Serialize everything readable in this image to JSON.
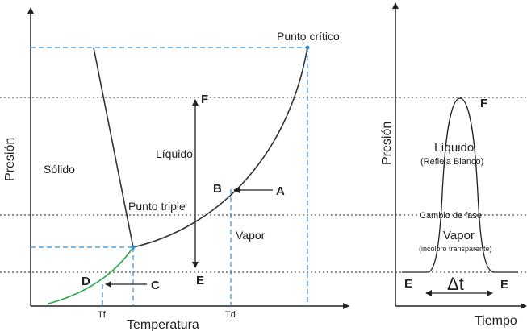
{
  "phase_diagram": {
    "y_axis_label": "Presión",
    "x_axis_label": "Temperatura",
    "regions": {
      "solid": "Sólido",
      "liquid": "Líquido",
      "vapor": "Vapor"
    },
    "points": {
      "critical": "Punto crítico",
      "triple": "Punto triple",
      "A": "A",
      "B": "B",
      "C": "C",
      "D": "D",
      "E": "E",
      "F": "F"
    },
    "x_ticks": {
      "tf": "Tf",
      "td": "Td"
    },
    "colors": {
      "curve": "#333333",
      "sublimation_curve": "#2aa84a",
      "guide_lines": "#2b8fdc",
      "point": "#2b8fdc"
    }
  },
  "pressure_time_plot": {
    "y_axis_label": "Presión",
    "x_axis_label": "Tiempo",
    "labels": {
      "liquid": "Líquido",
      "liquid_note": "(Refleja Blanco)",
      "phase_change": "Cambio de fase",
      "vapor": "Vapor",
      "vapor_note": "(incoloro transparente)",
      "delta_t": "Δt",
      "E_left": "E",
      "E_right": "E",
      "F": "F"
    }
  }
}
